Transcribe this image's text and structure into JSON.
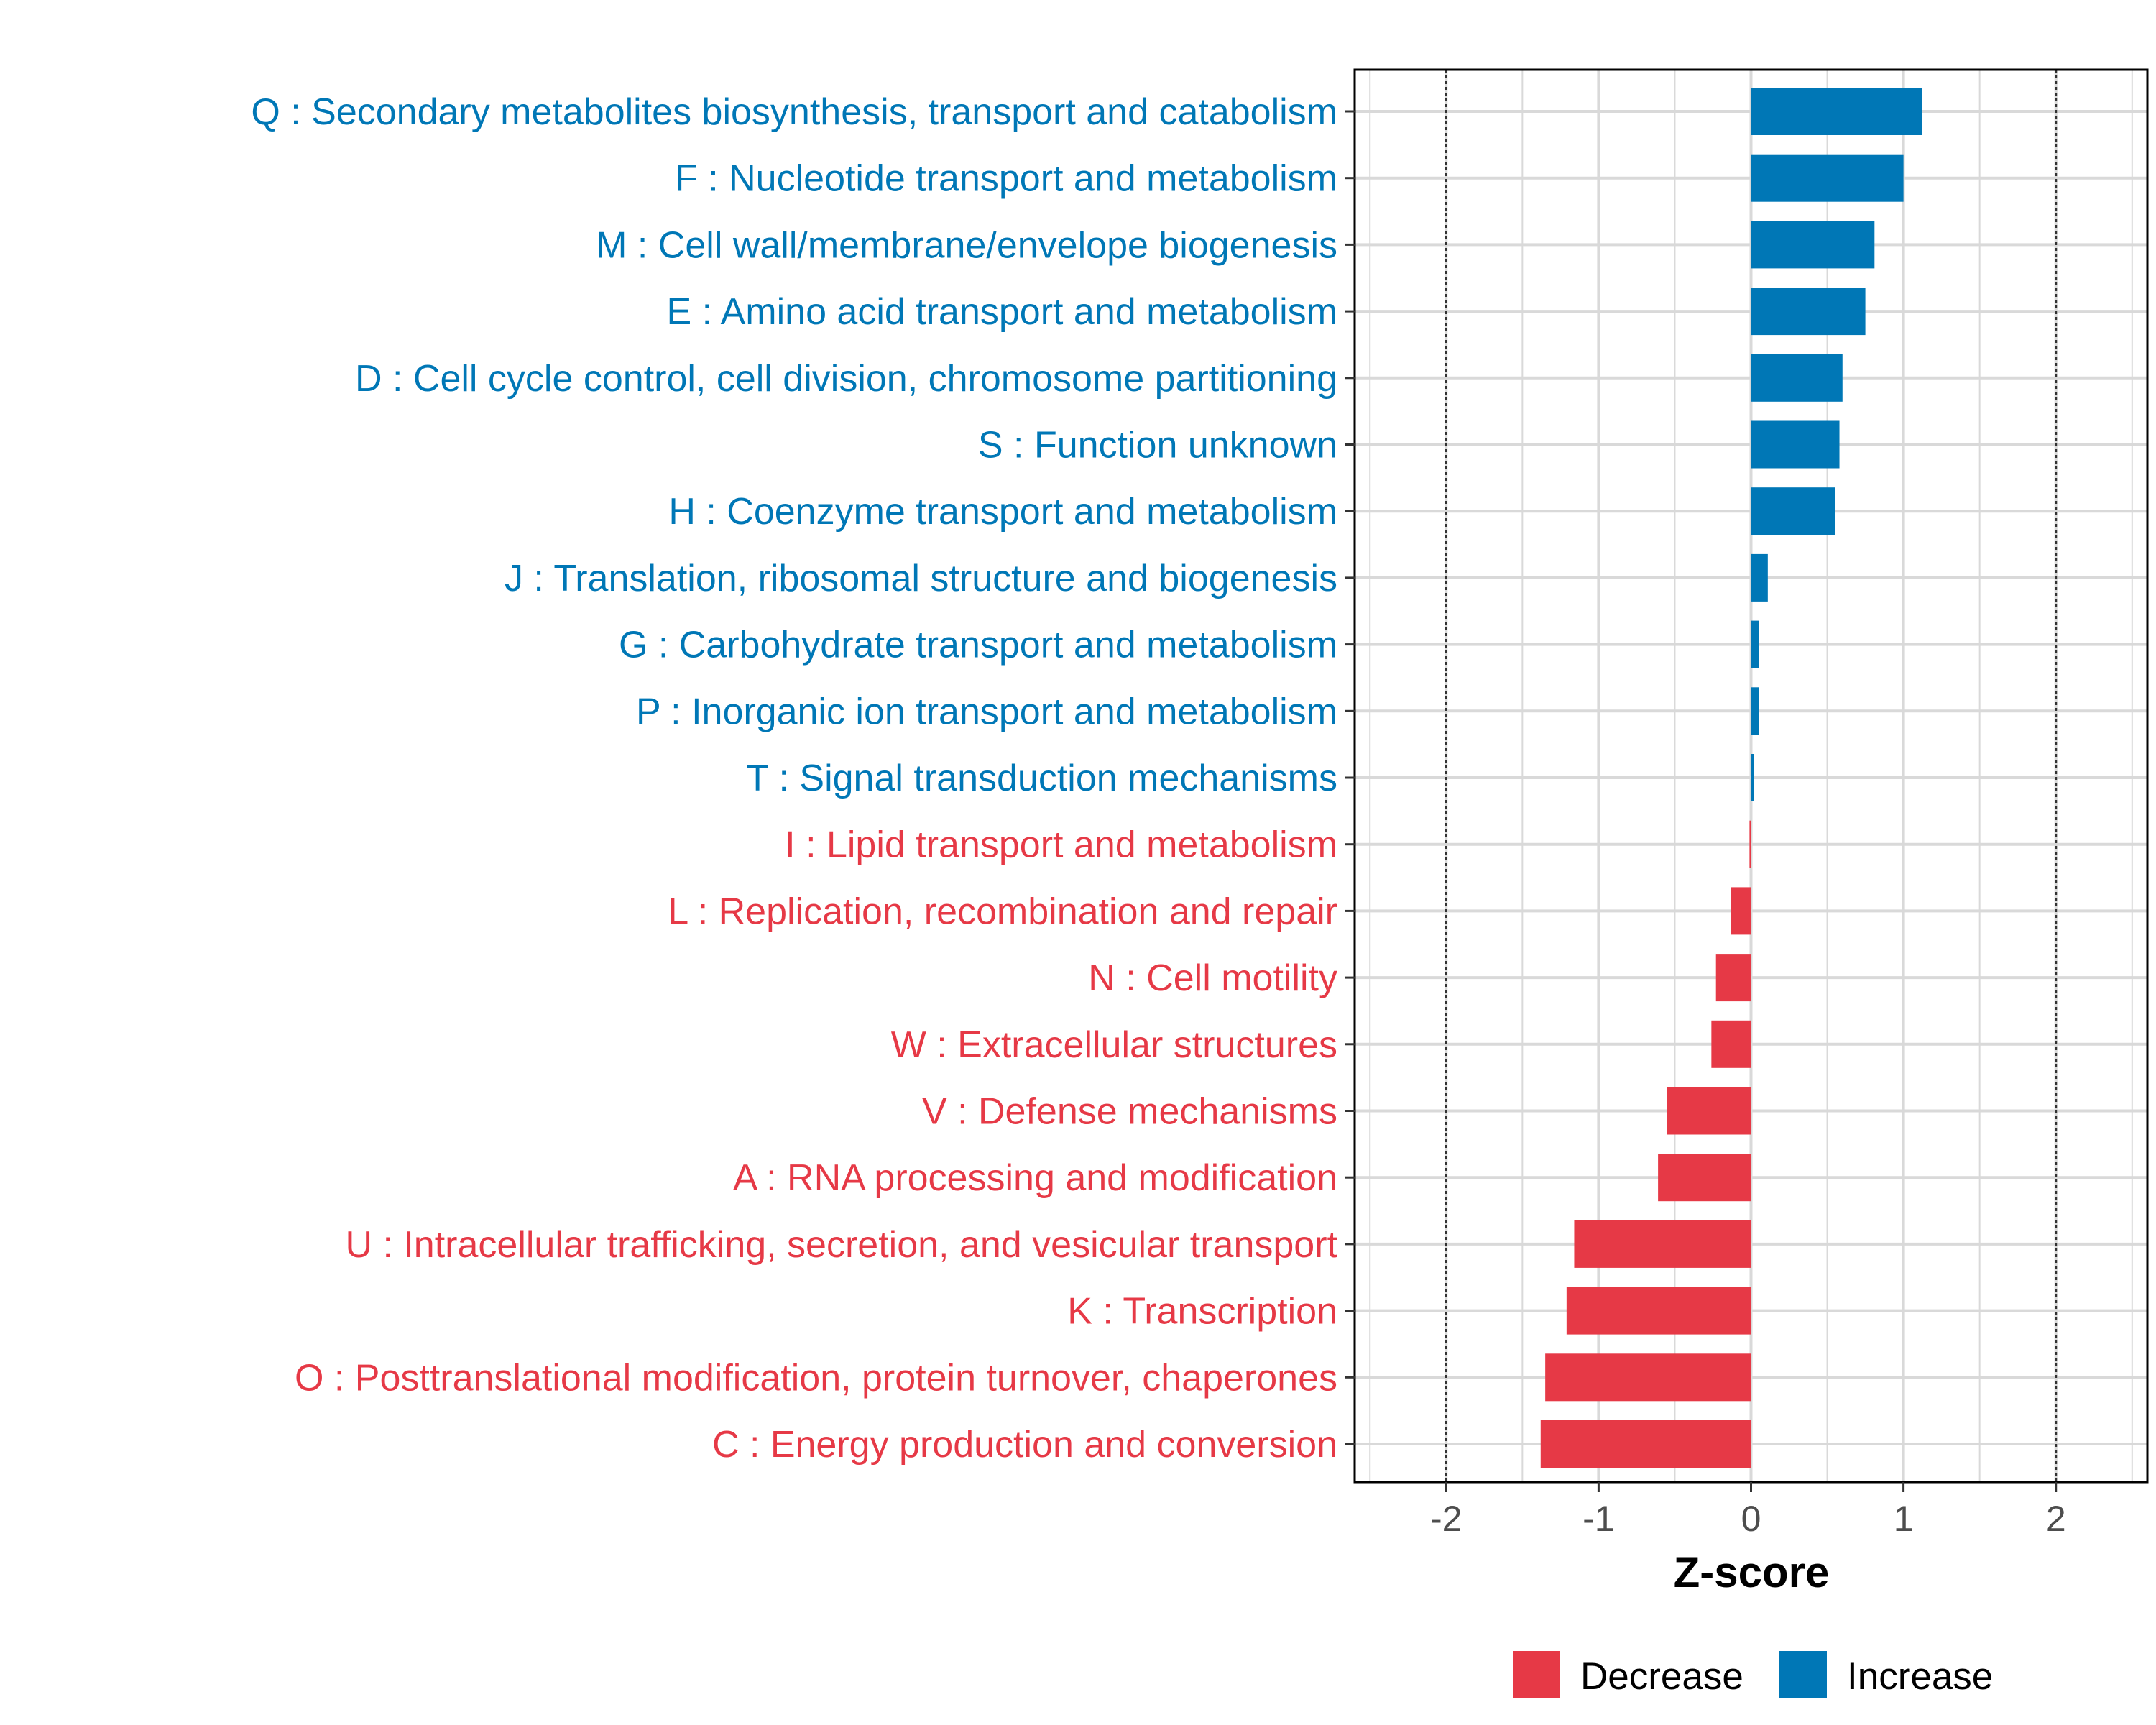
{
  "chart_data": {
    "type": "bar",
    "orientation": "horizontal",
    "title": "",
    "xlabel": "Z-score",
    "ylabel": "",
    "xlim": [
      -2.6,
      2.6
    ],
    "x_ticks": [
      -2,
      -1,
      0,
      1,
      2
    ],
    "x_tick_labels": [
      "-2",
      "-1",
      "0",
      "1",
      "2"
    ],
    "reference_lines": [
      -2,
      2
    ],
    "grid": true,
    "colors": {
      "Decrease": "#E63946",
      "Increase": "#0077B6"
    },
    "categories": [
      "Q : Secondary metabolites biosynthesis, transport and catabolism",
      "F : Nucleotide transport and metabolism",
      "M : Cell wall/membrane/envelope biogenesis",
      "E : Amino acid transport and metabolism",
      "D : Cell cycle control, cell division, chromosome partitioning",
      "S : Function unknown",
      "H : Coenzyme transport and metabolism",
      "J : Translation, ribosomal structure and biogenesis",
      "G : Carbohydrate transport and metabolism",
      "P : Inorganic ion transport and metabolism",
      "T : Signal transduction mechanisms",
      "I : Lipid transport and metabolism",
      "L : Replication, recombination and repair",
      "N : Cell motility",
      "W : Extracellular structures",
      "V : Defense mechanisms",
      "A : RNA processing and modification",
      "U : Intracellular trafficking, secretion, and vesicular transport",
      "K : Transcription",
      "O : Posttranslational modification, protein turnover, chaperones",
      "C : Energy production and conversion"
    ],
    "values": [
      1.12,
      1.0,
      0.81,
      0.75,
      0.6,
      0.58,
      0.55,
      0.11,
      0.05,
      0.05,
      0.02,
      -0.01,
      -0.13,
      -0.23,
      -0.26,
      -0.55,
      -0.61,
      -1.16,
      -1.21,
      -1.35,
      -1.38
    ],
    "groups": [
      "Increase",
      "Increase",
      "Increase",
      "Increase",
      "Increase",
      "Increase",
      "Increase",
      "Increase",
      "Increase",
      "Increase",
      "Increase",
      "Decrease",
      "Decrease",
      "Decrease",
      "Decrease",
      "Decrease",
      "Decrease",
      "Decrease",
      "Decrease",
      "Decrease",
      "Decrease"
    ],
    "legend": {
      "position": "bottom",
      "entries": [
        {
          "name": "Decrease",
          "color": "#E63946"
        },
        {
          "name": "Increase",
          "color": "#0077B6"
        }
      ]
    }
  }
}
